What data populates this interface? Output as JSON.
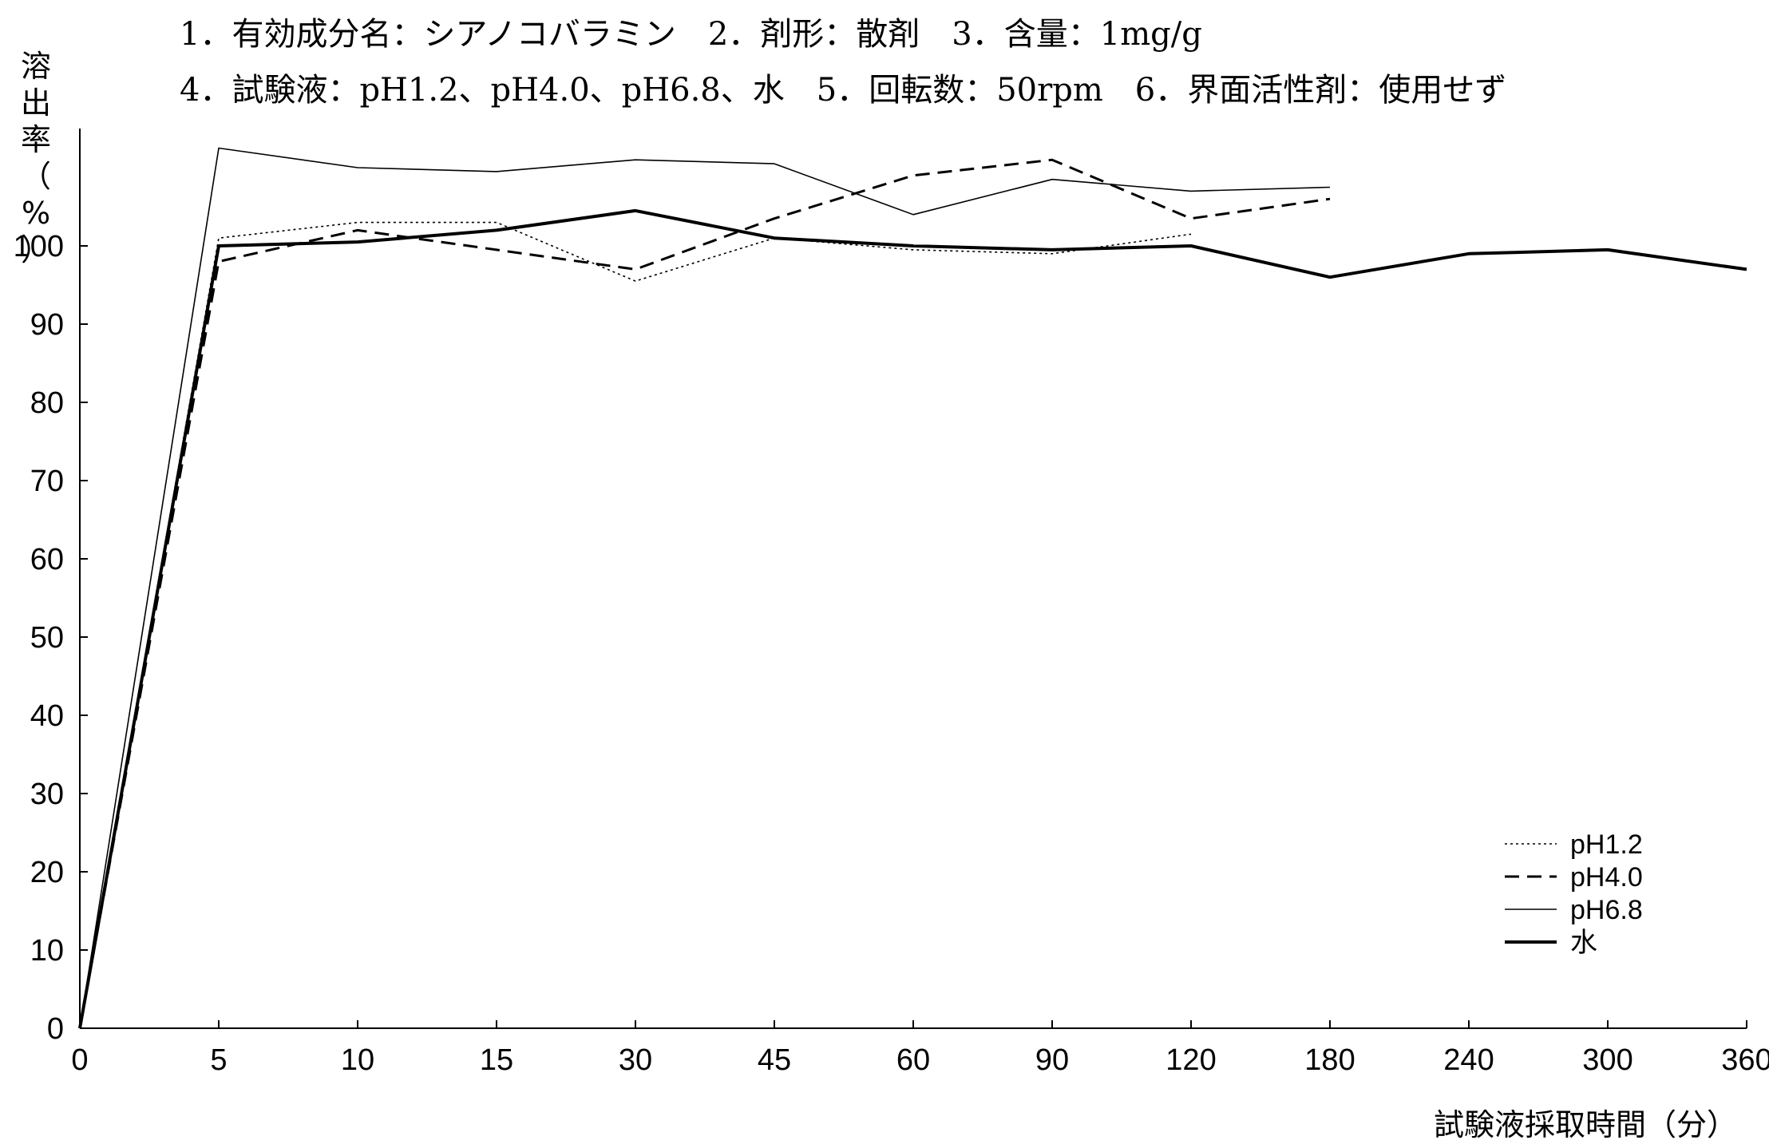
{
  "header": {
    "line1": "1．有効成分名：シアノコバラミン　2．剤形：散剤　3．含量：1mg/g",
    "line2": "4．試験液：pH1.2、pH4.0、pH6.8、水　5．回転数：50rpm　6．界面活性剤：使用せず"
  },
  "chart_data": {
    "type": "line",
    "title": "",
    "xlabel": "試験液採取時間（分）",
    "ylabel": "溶出率（%）",
    "categories": [
      "0",
      "5",
      "10",
      "15",
      "30",
      "45",
      "60",
      "90",
      "120",
      "180",
      "240",
      "300",
      "360"
    ],
    "yticks": [
      0,
      10,
      20,
      30,
      40,
      50,
      60,
      70,
      80,
      90,
      100
    ],
    "ylim": [
      0,
      115
    ],
    "grid": false,
    "legend_position": "bottom-right",
    "series": [
      {
        "name": "pH1.2",
        "style": "dotted",
        "values": [
          0,
          101,
          103,
          103,
          95.5,
          101,
          99.5,
          99,
          101.5,
          null,
          null,
          null,
          null
        ]
      },
      {
        "name": "pH4.0",
        "style": "dashed",
        "values": [
          0,
          98,
          102,
          99.5,
          97,
          103.5,
          109,
          111,
          103.5,
          106,
          null,
          null,
          null
        ]
      },
      {
        "name": "pH6.8",
        "style": "thin",
        "values": [
          0,
          112.5,
          110,
          109.5,
          111,
          110.5,
          104,
          108.5,
          107,
          107.5,
          null,
          null,
          null
        ]
      },
      {
        "name": "水",
        "style": "thick",
        "values": [
          0,
          100,
          100.5,
          102,
          104.5,
          101,
          100,
          99.5,
          100,
          96,
          99,
          99.5,
          97
        ]
      }
    ]
  }
}
